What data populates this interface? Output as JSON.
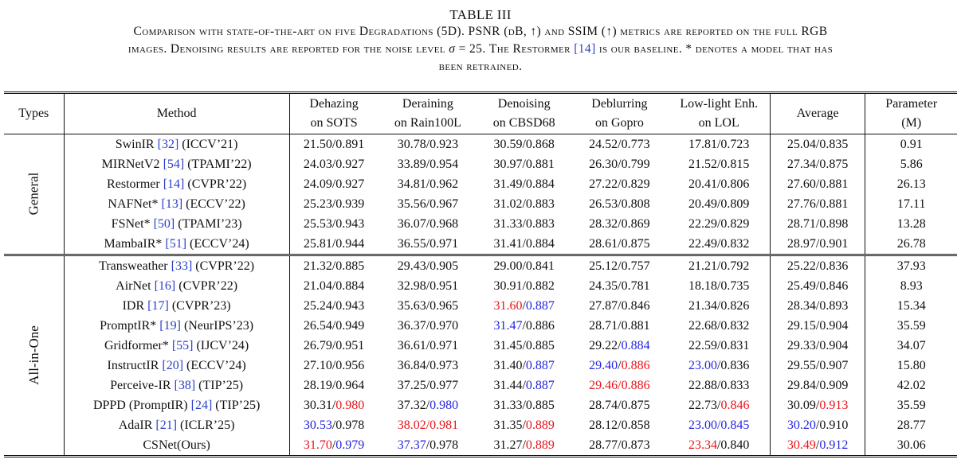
{
  "caption": {
    "title": "TABLE III",
    "line1_a": "Comparison with state-of-the-art on five Degradations (5D). ",
    "line1_b": "PSNR (",
    "line1_c": "dB, ↑) ",
    "line1_d": "and SSIM",
    "line1_e": " (↑) metrics are reported on the full RGB",
    "line2_a": "images. Denoising results are reported for the noise level ",
    "sigma": "σ",
    "line2_b": " = 25",
    "line2_c": ". The Restormer ",
    "line2_ref": "[14]",
    "line2_d": " is our baseline. * denotes a model that has",
    "line3": "been retrained."
  },
  "headers": {
    "types": "Types",
    "method": "Method",
    "dehazing": [
      "Dehazing",
      "on SOTS"
    ],
    "deraining": [
      "Deraining",
      "on Rain100L"
    ],
    "denoising": [
      "Denoising",
      "on CBSD68"
    ],
    "deblurring": [
      "Deblurring",
      "on Gopro"
    ],
    "lowlight": [
      "Low-light Enh.",
      "on LOL"
    ],
    "average": "Average",
    "parameter": [
      "Parameter",
      "(M)"
    ]
  },
  "groups": [
    {
      "type": "General",
      "rows": [
        {
          "name": "SwinIR ",
          "ref": "[32]",
          "venue": " (ICCV’21)",
          "cells": [
            [
              [
                "21.50/0.891",
                ""
              ]
            ],
            [
              [
                "30.78/0.923",
                ""
              ]
            ],
            [
              [
                "30.59/0.868",
                ""
              ]
            ],
            [
              [
                "24.52/0.773",
                ""
              ]
            ],
            [
              [
                "17.81/0.723",
                ""
              ]
            ],
            [
              [
                "25.04/0.835",
                ""
              ]
            ]
          ],
          "param": "0.91"
        },
        {
          "name": "MIRNetV2 ",
          "ref": "[54]",
          "venue": " (TPAMI’22)",
          "cells": [
            [
              [
                "24.03/0.927",
                ""
              ]
            ],
            [
              [
                "33.89/0.954",
                ""
              ]
            ],
            [
              [
                "30.97/0.881",
                ""
              ]
            ],
            [
              [
                "26.30/0.799",
                ""
              ]
            ],
            [
              [
                "21.52/0.815",
                ""
              ]
            ],
            [
              [
                "27.34/0.875",
                ""
              ]
            ]
          ],
          "param": "5.86"
        },
        {
          "name": "Restormer ",
          "ref": "[14]",
          "venue": " (CVPR’22)",
          "cells": [
            [
              [
                "24.09/0.927",
                ""
              ]
            ],
            [
              [
                "34.81/0.962",
                ""
              ]
            ],
            [
              [
                "31.49/0.884",
                ""
              ]
            ],
            [
              [
                "27.22/0.829",
                ""
              ]
            ],
            [
              [
                "20.41/0.806",
                ""
              ]
            ],
            [
              [
                "27.60/0.881",
                ""
              ]
            ]
          ],
          "param": "26.13"
        },
        {
          "name": "NAFNet* ",
          "ref": "[13]",
          "venue": " (ECCV’22)",
          "cells": [
            [
              [
                "25.23/0.939",
                ""
              ]
            ],
            [
              [
                "35.56/0.967",
                ""
              ]
            ],
            [
              [
                "31.02/0.883",
                ""
              ]
            ],
            [
              [
                "26.53/0.808",
                ""
              ]
            ],
            [
              [
                "20.49/0.809",
                ""
              ]
            ],
            [
              [
                "27.76/0.881",
                ""
              ]
            ]
          ],
          "param": "17.11"
        },
        {
          "name": "FSNet* ",
          "ref": "[50]",
          "venue": " (TPAMI’23)",
          "cells": [
            [
              [
                "25.53/0.943",
                ""
              ]
            ],
            [
              [
                "36.07/0.968",
                ""
              ]
            ],
            [
              [
                "31.33/0.883",
                ""
              ]
            ],
            [
              [
                "28.32/0.869",
                ""
              ]
            ],
            [
              [
                "22.29/0.829",
                ""
              ]
            ],
            [
              [
                "28.71/0.898",
                ""
              ]
            ]
          ],
          "param": "13.28"
        },
        {
          "name": "MambaIR* ",
          "ref": "[51]",
          "venue": " (ECCV’24)",
          "cells": [
            [
              [
                "25.81/0.944",
                ""
              ]
            ],
            [
              [
                "36.55/0.971",
                ""
              ]
            ],
            [
              [
                "31.41/0.884",
                ""
              ]
            ],
            [
              [
                "28.61/0.875",
                ""
              ]
            ],
            [
              [
                "22.49/0.832",
                ""
              ]
            ],
            [
              [
                "28.97/0.901",
                ""
              ]
            ]
          ],
          "param": "26.78"
        }
      ]
    },
    {
      "type": "All-in-One",
      "rows": [
        {
          "name": "Transweather ",
          "ref": "[33]",
          "venue": " (CVPR’22)",
          "cells": [
            [
              [
                "21.32/0.885",
                ""
              ]
            ],
            [
              [
                "29.43/0.905",
                ""
              ]
            ],
            [
              [
                "29.00/0.841",
                ""
              ]
            ],
            [
              [
                "25.12/0.757",
                ""
              ]
            ],
            [
              [
                "21.21/0.792",
                ""
              ]
            ],
            [
              [
                "25.22/0.836",
                ""
              ]
            ]
          ],
          "param": "37.93"
        },
        {
          "name": "AirNet ",
          "ref": "[16]",
          "venue": " (CVPR’22)",
          "cells": [
            [
              [
                "21.04/0.884",
                ""
              ]
            ],
            [
              [
                "32.98/0.951",
                ""
              ]
            ],
            [
              [
                "30.91/0.882",
                ""
              ]
            ],
            [
              [
                "24.35/0.781",
                ""
              ]
            ],
            [
              [
                "18.18/0.735",
                ""
              ]
            ],
            [
              [
                "25.49/0.846",
                ""
              ]
            ]
          ],
          "param": "8.93"
        },
        {
          "name": "IDR ",
          "ref": "[17]",
          "venue": " (CVPR’23)",
          "cells": [
            [
              [
                "25.24/0.943",
                ""
              ]
            ],
            [
              [
                "35.63/0.965",
                ""
              ]
            ],
            [
              [
                "31.60",
                "red"
              ],
              [
                "/",
                ""
              ],
              [
                "0.887",
                "blue"
              ]
            ],
            [
              [
                "27.87/0.846",
                ""
              ]
            ],
            [
              [
                "21.34/0.826",
                ""
              ]
            ],
            [
              [
                "28.34/0.893",
                ""
              ]
            ]
          ],
          "param": "15.34"
        },
        {
          "name": "PromptIR* ",
          "ref": "[19]",
          "venue": " (NeurIPS’23)",
          "cells": [
            [
              [
                "26.54/0.949",
                ""
              ]
            ],
            [
              [
                "36.37/0.970",
                ""
              ]
            ],
            [
              [
                "31.47",
                "blue"
              ],
              [
                "/0.886",
                ""
              ]
            ],
            [
              [
                "28.71/0.881",
                ""
              ]
            ],
            [
              [
                "22.68/0.832",
                ""
              ]
            ],
            [
              [
                "29.15/0.904",
                ""
              ]
            ]
          ],
          "param": "35.59"
        },
        {
          "name": "Gridformer* ",
          "ref": "[55]",
          "venue": " (IJCV’24)",
          "cells": [
            [
              [
                "26.79/0.951",
                ""
              ]
            ],
            [
              [
                "36.61/0.971",
                ""
              ]
            ],
            [
              [
                "31.45/0.885",
                ""
              ]
            ],
            [
              [
                "29.22/",
                ""
              ],
              [
                "0.884",
                "blue"
              ]
            ],
            [
              [
                "22.59/0.831",
                ""
              ]
            ],
            [
              [
                "29.33/0.904",
                ""
              ]
            ]
          ],
          "param": "34.07"
        },
        {
          "name": "InstructIR ",
          "ref": "[20]",
          "venue": " (ECCV’24)",
          "cells": [
            [
              [
                "27.10/0.956",
                ""
              ]
            ],
            [
              [
                "36.84/0.973",
                ""
              ]
            ],
            [
              [
                "31.40/",
                ""
              ],
              [
                "0.887",
                "blue"
              ]
            ],
            [
              [
                "29.40",
                "blue"
              ],
              [
                "/",
                ""
              ],
              [
                "0.886",
                "red"
              ]
            ],
            [
              [
                "23.00",
                "blue"
              ],
              [
                "/0.836",
                ""
              ]
            ],
            [
              [
                "29.55/0.907",
                ""
              ]
            ]
          ],
          "param": "15.80"
        },
        {
          "name": "Perceive-IR ",
          "ref": "[38]",
          "venue": " (TIP’25)",
          "cells": [
            [
              [
                "28.19/0.964",
                ""
              ]
            ],
            [
              [
                "37.25/0.977",
                ""
              ]
            ],
            [
              [
                "31.44/",
                ""
              ],
              [
                "0.887",
                "blue"
              ]
            ],
            [
              [
                "29.46/0.886",
                "red"
              ]
            ],
            [
              [
                "22.88/0.833",
                ""
              ]
            ],
            [
              [
                "29.84/0.909",
                ""
              ]
            ]
          ],
          "param": "42.02"
        },
        {
          "name": "DPPD (PromptIR) ",
          "ref": "[24]",
          "venue": " (TIP’25)",
          "cells": [
            [
              [
                "30.31/",
                ""
              ],
              [
                "0.980",
                "red"
              ]
            ],
            [
              [
                "37.32/",
                ""
              ],
              [
                "0.980",
                "blue"
              ]
            ],
            [
              [
                "31.33/0.885",
                ""
              ]
            ],
            [
              [
                "28.74/0.875",
                ""
              ]
            ],
            [
              [
                "22.73/",
                ""
              ],
              [
                "0.846",
                "red"
              ]
            ],
            [
              [
                "30.09/",
                ""
              ],
              [
                "0.913",
                "red"
              ]
            ]
          ],
          "param": "35.59"
        },
        {
          "name": "AdaIR ",
          "ref": "[21]",
          "venue": " (ICLR’25)",
          "cells": [
            [
              [
                "30.53",
                "blue"
              ],
              [
                "/0.978",
                ""
              ]
            ],
            [
              [
                "38.02/0.981",
                "red"
              ]
            ],
            [
              [
                "31.35/",
                ""
              ],
              [
                "0.889",
                "red"
              ]
            ],
            [
              [
                "28.12/0.858",
                ""
              ]
            ],
            [
              [
                "23.00/0.845",
                "blue"
              ]
            ],
            [
              [
                "30.20",
                "blue"
              ],
              [
                "/0.910",
                ""
              ]
            ]
          ],
          "param": "28.77"
        },
        {
          "name": "CSNet(Ours)",
          "ref": "",
          "venue": "",
          "cells": [
            [
              [
                "31.70",
                "red"
              ],
              [
                "/",
                ""
              ],
              [
                "0.979",
                "blue"
              ]
            ],
            [
              [
                "37.37",
                "blue"
              ],
              [
                "/0.978",
                ""
              ]
            ],
            [
              [
                "31.27/",
                ""
              ],
              [
                "0.889",
                "red"
              ]
            ],
            [
              [
                "28.77/0.873",
                ""
              ]
            ],
            [
              [
                "23.34",
                "red"
              ],
              [
                "/0.840",
                ""
              ]
            ],
            [
              [
                "30.49",
                "red"
              ],
              [
                "/",
                ""
              ],
              [
                "0.912",
                "blue"
              ]
            ]
          ],
          "param": "30.06"
        }
      ]
    }
  ]
}
